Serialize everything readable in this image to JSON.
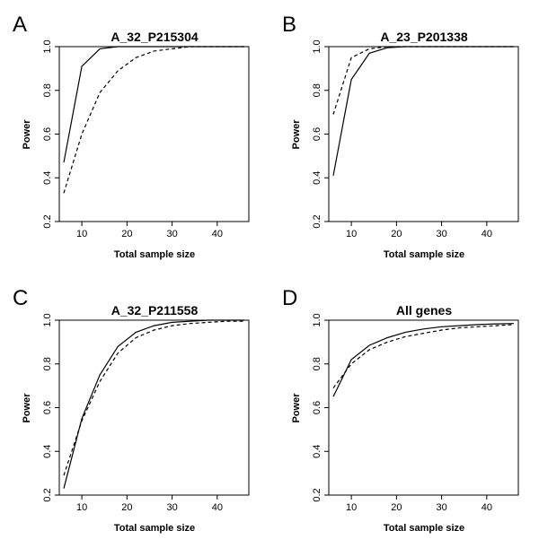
{
  "chart_data": [
    {
      "panel": "A",
      "type": "line",
      "title": "A_32_P215304",
      "xlabel": "Total sample size",
      "ylabel": "Power",
      "xlim": [
        5,
        47
      ],
      "ylim": [
        0.2,
        1.0
      ],
      "xticks": [
        10,
        20,
        30,
        40
      ],
      "yticks": [
        0.2,
        0.4,
        0.6,
        0.8,
        1.0
      ],
      "ytick_labels": [
        "0.2",
        "0.4",
        "0.6",
        "0.8",
        "1.0"
      ],
      "grid": false,
      "series": [
        {
          "style": "solid",
          "x": [
            6,
            10,
            14,
            18,
            22,
            26,
            30,
            34,
            38,
            42,
            46
          ],
          "y": [
            0.47,
            0.91,
            0.99,
            1.0,
            1.0,
            1.0,
            1.0,
            1.0,
            1.0,
            1.0,
            1.0
          ]
        },
        {
          "style": "dashed",
          "x": [
            6,
            10,
            14,
            18,
            22,
            26,
            30,
            34,
            38,
            42,
            46
          ],
          "y": [
            0.33,
            0.6,
            0.79,
            0.89,
            0.95,
            0.98,
            0.99,
            1.0,
            1.0,
            1.0,
            1.0
          ]
        }
      ]
    },
    {
      "panel": "B",
      "type": "line",
      "title": "A_23_P201338",
      "xlabel": "Total sample size",
      "ylabel": "Power",
      "xlim": [
        5,
        47
      ],
      "ylim": [
        0.2,
        1.0
      ],
      "xticks": [
        10,
        20,
        30,
        40
      ],
      "yticks": [
        0.2,
        0.4,
        0.6,
        0.8,
        1.0
      ],
      "ytick_labels": [
        "0.2",
        "0.4",
        "0.6",
        "0.8",
        "1.0"
      ],
      "grid": false,
      "series": [
        {
          "style": "solid",
          "x": [
            6,
            10,
            14,
            18,
            22,
            26,
            30,
            34,
            38,
            42,
            46
          ],
          "y": [
            0.41,
            0.85,
            0.97,
            0.995,
            1.0,
            1.0,
            1.0,
            1.0,
            1.0,
            1.0,
            1.0
          ]
        },
        {
          "style": "dashed",
          "x": [
            6,
            10,
            14,
            18,
            22,
            26,
            30,
            34,
            38,
            42,
            46
          ],
          "y": [
            0.69,
            0.95,
            0.99,
            1.0,
            1.0,
            1.0,
            1.0,
            1.0,
            1.0,
            1.0,
            1.0
          ]
        }
      ]
    },
    {
      "panel": "C",
      "type": "line",
      "title": "A_32_P211558",
      "xlabel": "Total sample size",
      "ylabel": "Power",
      "xlim": [
        5,
        47
      ],
      "ylim": [
        0.2,
        1.0
      ],
      "xticks": [
        10,
        20,
        30,
        40
      ],
      "yticks": [
        0.2,
        0.4,
        0.6,
        0.8,
        1.0
      ],
      "ytick_labels": [
        "0.2",
        "0.4",
        "0.6",
        "0.8",
        "1.0"
      ],
      "grid": false,
      "series": [
        {
          "style": "solid",
          "x": [
            6,
            10,
            14,
            18,
            22,
            26,
            30,
            34,
            38,
            42,
            46
          ],
          "y": [
            0.23,
            0.55,
            0.75,
            0.88,
            0.945,
            0.975,
            0.99,
            0.995,
            1.0,
            1.0,
            1.0
          ]
        },
        {
          "style": "dashed",
          "x": [
            6,
            10,
            14,
            18,
            22,
            26,
            30,
            34,
            38,
            42,
            46
          ],
          "y": [
            0.29,
            0.54,
            0.72,
            0.85,
            0.92,
            0.955,
            0.975,
            0.985,
            0.99,
            0.995,
            0.995
          ]
        }
      ]
    },
    {
      "panel": "D",
      "type": "line",
      "title": "All genes",
      "xlabel": "Total sample size",
      "ylabel": "Power",
      "xlim": [
        5,
        47
      ],
      "ylim": [
        0.2,
        1.0
      ],
      "xticks": [
        10,
        20,
        30,
        40
      ],
      "yticks": [
        0.2,
        0.4,
        0.6,
        0.8,
        1.0
      ],
      "ytick_labels": [
        "0.2",
        "0.4",
        "0.6",
        "0.8",
        "1.0"
      ],
      "grid": false,
      "series": [
        {
          "style": "solid",
          "x": [
            6,
            10,
            14,
            18,
            22,
            26,
            30,
            34,
            38,
            42,
            46
          ],
          "y": [
            0.65,
            0.82,
            0.885,
            0.92,
            0.945,
            0.96,
            0.97,
            0.975,
            0.98,
            0.983,
            0.985
          ]
        },
        {
          "style": "dashed",
          "x": [
            6,
            10,
            14,
            18,
            22,
            26,
            30,
            34,
            38,
            42,
            46
          ],
          "y": [
            0.69,
            0.8,
            0.865,
            0.9,
            0.925,
            0.94,
            0.955,
            0.965,
            0.97,
            0.975,
            0.98
          ]
        }
      ]
    }
  ]
}
